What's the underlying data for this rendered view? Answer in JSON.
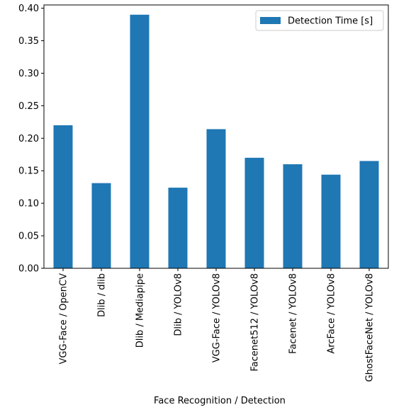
{
  "chart_data": {
    "type": "bar",
    "title": "",
    "xlabel": "Face Recognition / Detection",
    "ylabel": "",
    "categories": [
      "VGG-Face / OpenCV",
      "Dlib / dlib",
      "Dlib / Mediapipe",
      "Dlib / YOLOv8",
      "VGG-Face / YOLOv8",
      "Facenet512 / YOLOv8",
      "Facenet / YOLOv8",
      "ArcFace / YOLOv8",
      "GhostFaceNet / YOLOv8"
    ],
    "series": [
      {
        "name": "Detection Time [s]",
        "color": "#1f77b4",
        "values": [
          0.22,
          0.131,
          0.39,
          0.124,
          0.214,
          0.17,
          0.16,
          0.144,
          0.165
        ]
      }
    ],
    "ylim": [
      0,
      0.405
    ],
    "yticks": [
      "0.00",
      "0.05",
      "0.10",
      "0.15",
      "0.20",
      "0.25",
      "0.30",
      "0.35",
      "0.40"
    ],
    "grid": false,
    "legend_position": "top-right"
  }
}
